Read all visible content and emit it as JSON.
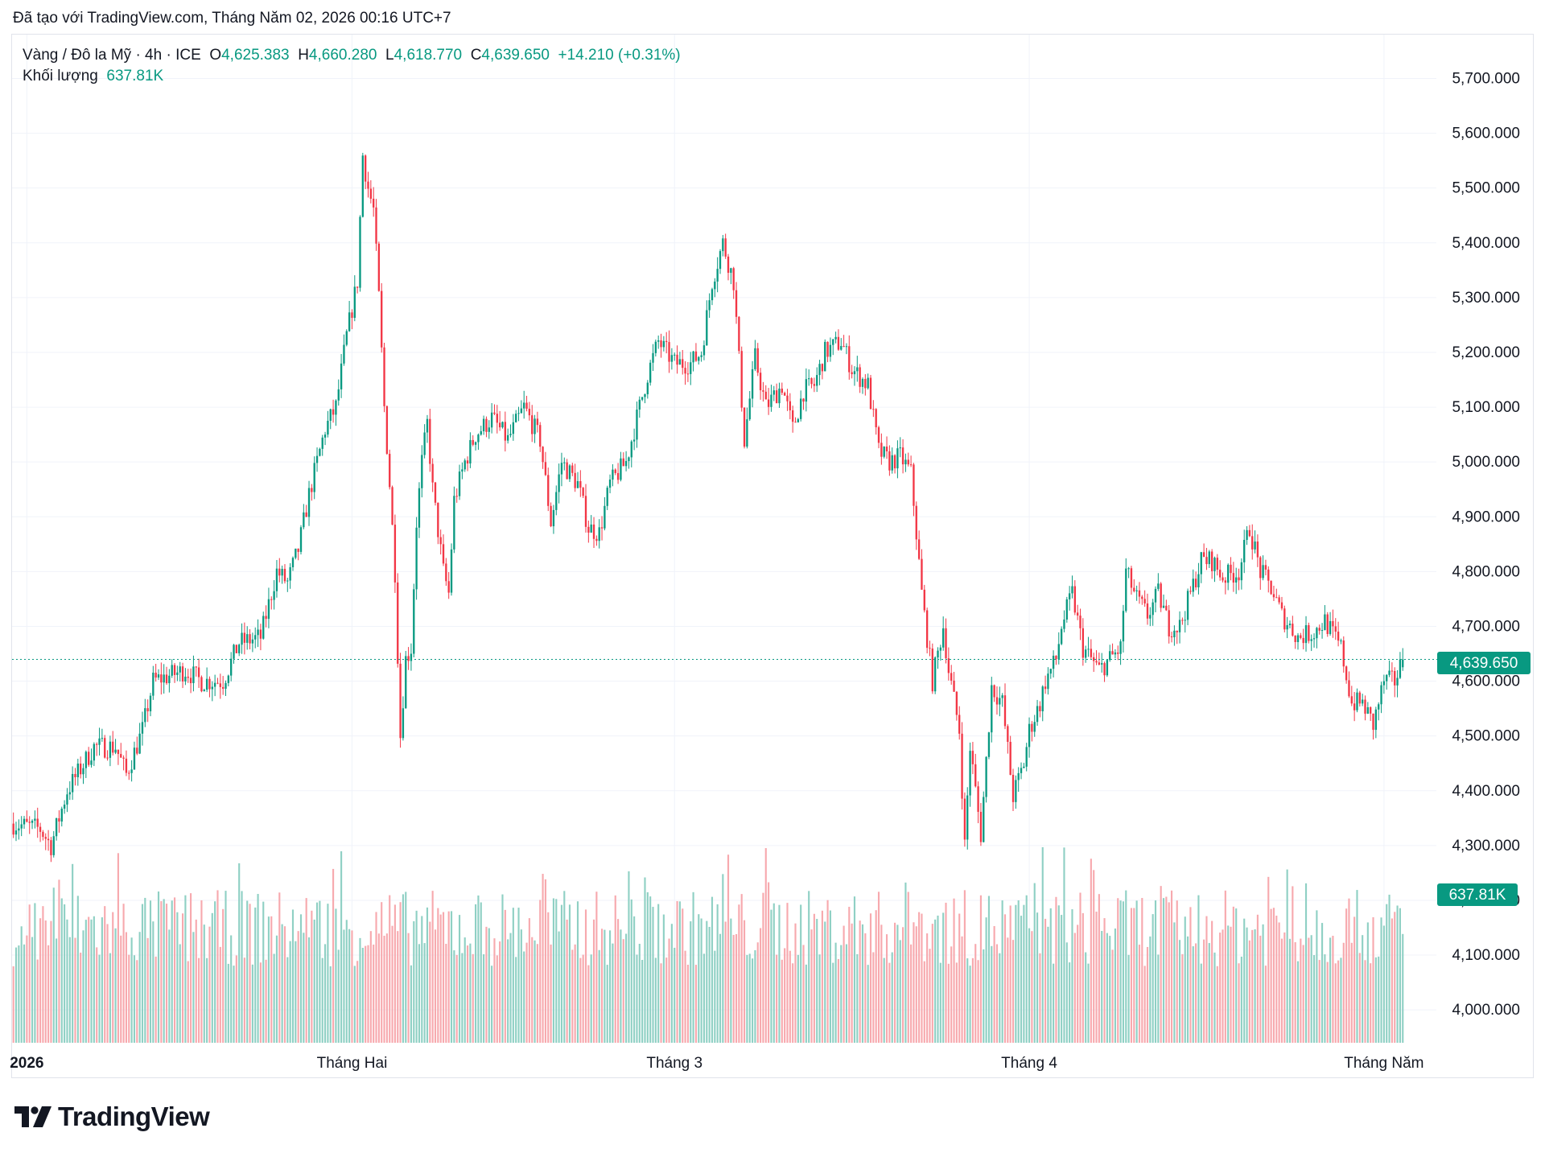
{
  "header": {
    "caption": "Đã tạo với TradingView.com, Tháng Năm 02, 2026 00:16 UTC+7"
  },
  "legend": {
    "symbol": "Vàng / Đô la Mỹ · 4h · ICE",
    "o_label": "O",
    "o": "4,625.383",
    "h_label": "H",
    "h": "4,660.280",
    "l_label": "L",
    "l": "4,618.770",
    "c_label": "C",
    "c": "4,639.650",
    "change": "+14.210 (+0.31%)",
    "volume_label": "Khối lượng",
    "volume": "637.81K"
  },
  "brand": {
    "name": "TradingView"
  },
  "colors": {
    "up": "#089981",
    "down": "#f23645",
    "up_vol": "#8fd0c4",
    "down_vol": "#f7a9ae",
    "grid": "#f0f3fa",
    "text": "#131722"
  },
  "chart_data": {
    "type": "candlestick",
    "symbol": "XAUUSD",
    "timeframe": "4h",
    "ylim": [
      3940,
      5780
    ],
    "y_ticks": [
      4000,
      4100,
      4200,
      4300,
      4400,
      4500,
      4600,
      4700,
      4800,
      4900,
      5000,
      5100,
      5200,
      5300,
      5400,
      5500,
      5600,
      5700
    ],
    "y_tick_labels": [
      "4,000.000",
      "4,100.000",
      "4,200.000",
      "4,300.000",
      "4,400.000",
      "4,500.000",
      "4,600.000",
      "4,700.000",
      "4,800.000",
      "4,900.000",
      "5,000.000",
      "5,100.000",
      "5,200.000",
      "5,300.000",
      "5,400.000",
      "5,500.000",
      "5,600.000",
      "5,700.000"
    ],
    "x_ticks": [
      {
        "label": "2026",
        "bold": true,
        "bar": 5
      },
      {
        "label": "Tháng Hai",
        "bold": false,
        "bar": 126
      },
      {
        "label": "Tháng 3",
        "bold": false,
        "bar": 246
      },
      {
        "label": "Tháng 4",
        "bold": false,
        "bar": 378
      },
      {
        "label": "Tháng Năm",
        "bold": false,
        "bar": 510
      }
    ],
    "last_price": 4639.65,
    "last_price_label": "4,639.650",
    "last_volume_label": "637.81K",
    "bars_total": 518,
    "close_path": [
      [
        0,
        4340
      ],
      [
        10,
        4330
      ],
      [
        14,
        4300
      ],
      [
        20,
        4400
      ],
      [
        30,
        4480
      ],
      [
        38,
        4480
      ],
      [
        42,
        4430
      ],
      [
        48,
        4510
      ],
      [
        52,
        4600
      ],
      [
        58,
        4610
      ],
      [
        64,
        4620
      ],
      [
        70,
        4600
      ],
      [
        78,
        4600
      ],
      [
        84,
        4670
      ],
      [
        92,
        4680
      ],
      [
        98,
        4800
      ],
      [
        102,
        4780
      ],
      [
        106,
        4840
      ],
      [
        110,
        4940
      ],
      [
        116,
        5060
      ],
      [
        120,
        5100
      ],
      [
        124,
        5230
      ],
      [
        128,
        5330
      ],
      [
        130,
        5560
      ],
      [
        132,
        5500
      ],
      [
        134,
        5460
      ],
      [
        136,
        5300
      ],
      [
        138,
        5100
      ],
      [
        140,
        4960
      ],
      [
        142,
        4800
      ],
      [
        144,
        4500
      ],
      [
        146,
        4640
      ],
      [
        148,
        4660
      ],
      [
        150,
        4890
      ],
      [
        152,
        5000
      ],
      [
        154,
        5070
      ],
      [
        156,
        4950
      ],
      [
        160,
        4800
      ],
      [
        162,
        4760
      ],
      [
        164,
        4930
      ],
      [
        168,
        5000
      ],
      [
        172,
        5050
      ],
      [
        178,
        5080
      ],
      [
        184,
        5040
      ],
      [
        190,
        5100
      ],
      [
        196,
        5040
      ],
      [
        200,
        4890
      ],
      [
        204,
        5000
      ],
      [
        210,
        4960
      ],
      [
        214,
        4880
      ],
      [
        218,
        4870
      ],
      [
        222,
        4960
      ],
      [
        228,
        5000
      ],
      [
        236,
        5160
      ],
      [
        240,
        5220
      ],
      [
        246,
        5180
      ],
      [
        252,
        5180
      ],
      [
        256,
        5200
      ],
      [
        260,
        5330
      ],
      [
        264,
        5400
      ],
      [
        268,
        5330
      ],
      [
        272,
        5040
      ],
      [
        276,
        5190
      ],
      [
        280,
        5100
      ],
      [
        286,
        5140
      ],
      [
        290,
        5060
      ],
      [
        294,
        5130
      ],
      [
        298,
        5140
      ],
      [
        302,
        5200
      ],
      [
        308,
        5220
      ],
      [
        312,
        5170
      ],
      [
        318,
        5140
      ],
      [
        322,
        5020
      ],
      [
        326,
        5000
      ],
      [
        330,
        5010
      ],
      [
        334,
        4980
      ],
      [
        338,
        4760
      ],
      [
        342,
        4600
      ],
      [
        346,
        4700
      ],
      [
        348,
        4620
      ],
      [
        352,
        4510
      ],
      [
        354,
        4300
      ],
      [
        356,
        4480
      ],
      [
        360,
        4320
      ],
      [
        364,
        4590
      ],
      [
        368,
        4560
      ],
      [
        372,
        4390
      ],
      [
        376,
        4450
      ],
      [
        378,
        4510
      ],
      [
        382,
        4560
      ],
      [
        384,
        4600
      ],
      [
        388,
        4640
      ],
      [
        390,
        4700
      ],
      [
        394,
        4760
      ],
      [
        398,
        4660
      ],
      [
        404,
        4620
      ],
      [
        408,
        4640
      ],
      [
        412,
        4660
      ],
      [
        414,
        4800
      ],
      [
        418,
        4750
      ],
      [
        422,
        4720
      ],
      [
        426,
        4760
      ],
      [
        430,
        4700
      ],
      [
        434,
        4700
      ],
      [
        438,
        4760
      ],
      [
        442,
        4820
      ],
      [
        446,
        4820
      ],
      [
        450,
        4790
      ],
      [
        456,
        4800
      ],
      [
        460,
        4880
      ],
      [
        464,
        4800
      ],
      [
        468,
        4770
      ],
      [
        472,
        4720
      ],
      [
        478,
        4680
      ],
      [
        484,
        4690
      ],
      [
        488,
        4710
      ],
      [
        494,
        4660
      ],
      [
        498,
        4560
      ],
      [
        502,
        4560
      ],
      [
        506,
        4520
      ],
      [
        510,
        4600
      ],
      [
        514,
        4600
      ],
      [
        517,
        4639.65
      ]
    ]
  }
}
